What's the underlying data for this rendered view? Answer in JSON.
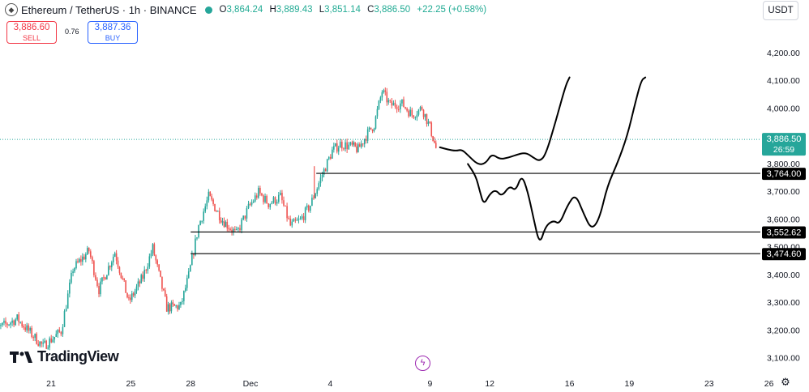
{
  "header": {
    "title": "Ethereum / TetherUS · 1h · BINANCE",
    "open_key": "O",
    "open": "3,864.24",
    "high_key": "H",
    "high": "3,889.43",
    "low_key": "L",
    "low": "3,851.14",
    "close_key": "C",
    "close": "3,886.50",
    "change": "+22.25 (+0.58%)"
  },
  "trade": {
    "sell_price": "3,886.60",
    "sell_label": "SELL",
    "spread": "0.76",
    "buy_price": "3,887.36",
    "buy_label": "BUY"
  },
  "currency": "USDT",
  "brand": "TradingView",
  "icons": [
    "ethereum-logo-icon",
    "eye-icon",
    "bolt-icon",
    "gear-icon",
    "tradingview-logo-icon"
  ],
  "colors": {
    "up": "#26a69a",
    "down": "#ef5350",
    "sell": "#f23645",
    "buy": "#2962ff",
    "price_label": "#26a69a",
    "level_label": "#000000",
    "bolt": "#9c27b0"
  },
  "chart_data": {
    "type": "candlestick",
    "symbol": "ETHUSDT",
    "interval": "1h",
    "y_ticks": [
      4200,
      4100,
      4000,
      3900,
      3800,
      3700,
      3600,
      3500,
      3400,
      3300,
      3200,
      3100
    ],
    "y_tick_labels": [
      "4,200.00",
      "4,100.00",
      "4,000.00",
      "3,900.00",
      "3,800.00",
      "3,700.00",
      "3,600.00",
      "3,500.00",
      "3,400.00",
      "3,300.00",
      "3,200.00",
      "3,100.00"
    ],
    "x_ticks": [
      "21",
      "25",
      "28",
      "Dec",
      "4",
      "9",
      "12",
      "16",
      "19",
      "23",
      "26"
    ],
    "x_tick_days": [
      21,
      25,
      28,
      31,
      35,
      40,
      43,
      47,
      50,
      54,
      57
    ],
    "current_price": 3886.5,
    "current_price_label": "3,886.50",
    "countdown": "26:59",
    "levels": [
      {
        "price": 3764.0,
        "label": "3,764.00",
        "from_day": 34.3
      },
      {
        "price": 3552.62,
        "label": "3,552.62",
        "from_day": 28.0
      },
      {
        "price": 3474.6,
        "label": "3,474.60",
        "from_day": 28.0
      }
    ],
    "price_path": [
      [
        17.9,
        3190
      ],
      [
        19.3,
        3240
      ],
      [
        20.6,
        3140
      ],
      [
        21.5,
        3195
      ],
      [
        22.1,
        3420
      ],
      [
        22.9,
        3485
      ],
      [
        23.4,
        3345
      ],
      [
        24.2,
        3480
      ],
      [
        24.9,
        3300
      ],
      [
        25.6,
        3390
      ],
      [
        26.1,
        3495
      ],
      [
        26.8,
        3280
      ],
      [
        27.5,
        3285
      ],
      [
        27.9,
        3395
      ],
      [
        28.4,
        3575
      ],
      [
        28.9,
        3680
      ],
      [
        29.6,
        3595
      ],
      [
        30.3,
        3545
      ],
      [
        30.9,
        3640
      ],
      [
        31.4,
        3695
      ],
      [
        31.9,
        3655
      ],
      [
        32.5,
        3680
      ],
      [
        33.0,
        3575
      ],
      [
        33.5,
        3595
      ],
      [
        34.0,
        3650
      ],
      [
        34.6,
        3760
      ],
      [
        35.1,
        3845
      ],
      [
        35.5,
        3870
      ],
      [
        36.1,
        3860
      ],
      [
        36.4,
        3850
      ],
      [
        36.8,
        3900
      ],
      [
        37.2,
        3940
      ],
      [
        37.6,
        4060
      ],
      [
        38.0,
        4010
      ],
      [
        38.6,
        4015
      ],
      [
        39.1,
        3975
      ],
      [
        39.6,
        4000
      ],
      [
        40.0,
        3930
      ],
      [
        40.3,
        3855
      ]
    ],
    "projections": [
      [
        [
          40.5,
          3858
        ],
        [
          40.9,
          3850
        ],
        [
          41.3,
          3845
        ],
        [
          41.6,
          3850
        ],
        [
          41.9,
          3830
        ],
        [
          42.4,
          3795
        ],
        [
          42.8,
          3800
        ],
        [
          43.1,
          3835
        ],
        [
          43.5,
          3815
        ],
        [
          43.9,
          3820
        ],
        [
          44.3,
          3830
        ],
        [
          44.8,
          3840
        ],
        [
          45.2,
          3820
        ],
        [
          45.5,
          3808
        ],
        [
          45.8,
          3830
        ],
        [
          46.3,
          3950
        ],
        [
          46.8,
          4080
        ],
        [
          47.0,
          4110
        ]
      ],
      [
        [
          41.9,
          3798
        ],
        [
          42.3,
          3755
        ],
        [
          42.5,
          3700
        ],
        [
          42.7,
          3650
        ],
        [
          43.0,
          3690
        ],
        [
          43.3,
          3705
        ],
        [
          43.6,
          3680
        ],
        [
          44.0,
          3720
        ],
        [
          44.3,
          3700
        ],
        [
          44.6,
          3760
        ],
        [
          44.9,
          3700
        ],
        [
          45.2,
          3600
        ],
        [
          45.5,
          3505
        ],
        [
          45.8,
          3575
        ],
        [
          46.2,
          3595
        ],
        [
          46.5,
          3580
        ],
        [
          46.9,
          3650
        ],
        [
          47.3,
          3690
        ],
        [
          47.7,
          3620
        ],
        [
          48.1,
          3560
        ],
        [
          48.5,
          3600
        ],
        [
          48.9,
          3720
        ],
        [
          49.4,
          3800
        ],
        [
          49.9,
          3900
        ],
        [
          50.3,
          4020
        ],
        [
          50.6,
          4100
        ],
        [
          50.8,
          4110
        ]
      ]
    ]
  }
}
